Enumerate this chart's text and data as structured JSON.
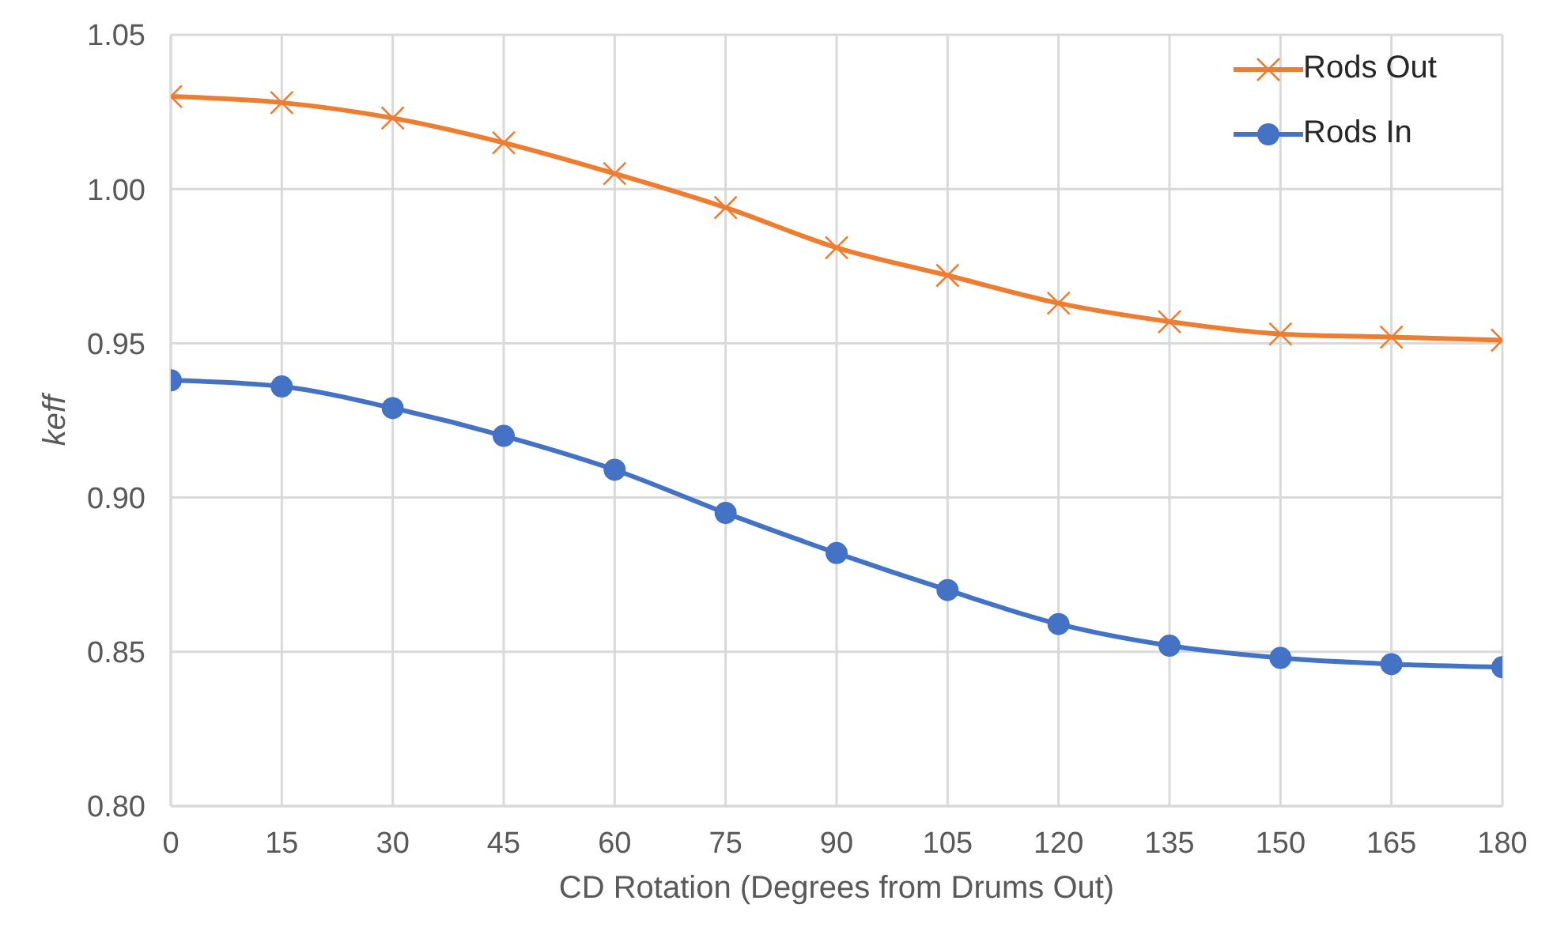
{
  "chart_data": {
    "type": "line",
    "xlabel": "CD Rotation (Degrees from Drums Out)",
    "ylabel": "keff",
    "x": [
      0,
      15,
      30,
      45,
      60,
      75,
      90,
      105,
      120,
      135,
      150,
      165,
      180
    ],
    "series": [
      {
        "name": "Rods Out",
        "color": "#ed7d31",
        "marker": "cross",
        "values": [
          1.03,
          1.028,
          1.023,
          1.015,
          1.005,
          0.994,
          0.981,
          0.972,
          0.963,
          0.957,
          0.953,
          0.952,
          0.951
        ]
      },
      {
        "name": "Rods In",
        "color": "#4472c4",
        "marker": "circle",
        "values": [
          0.938,
          0.936,
          0.929,
          0.92,
          0.909,
          0.895,
          0.882,
          0.87,
          0.859,
          0.852,
          0.848,
          0.846,
          0.845
        ]
      }
    ],
    "xlim": [
      0,
      180
    ],
    "xticks": [
      0,
      15,
      30,
      45,
      60,
      75,
      90,
      105,
      120,
      135,
      150,
      165,
      180
    ],
    "ylim": [
      0.8,
      1.05
    ],
    "yticks": [
      {
        "value": 0.8,
        "label": "0.80"
      },
      {
        "value": 0.85,
        "label": "0.85"
      },
      {
        "value": 0.9,
        "label": "0.90"
      },
      {
        "value": 0.95,
        "label": "0.95"
      },
      {
        "value": 1.0,
        "label": "1.00"
      },
      {
        "value": 1.05,
        "label": "1.05"
      }
    ],
    "grid": true,
    "legend": "top right",
    "line_style": "solid"
  }
}
